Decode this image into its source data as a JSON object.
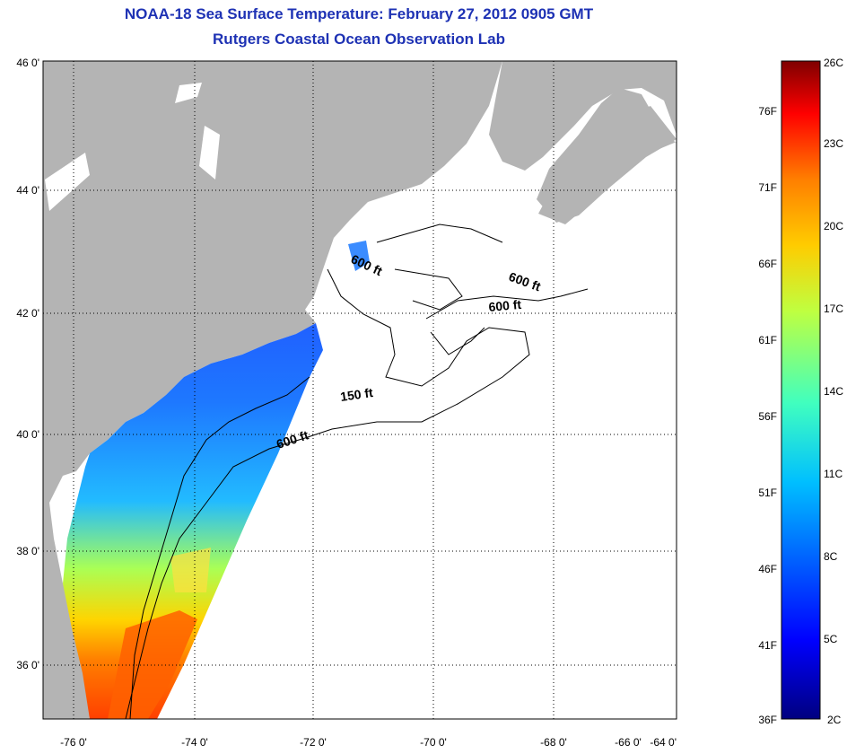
{
  "title": "NOAA-18 Sea Surface Temperature:  February 27, 2012 0905 GMT",
  "subtitle": "Rutgers Coastal Ocean Observation Lab",
  "map": {
    "lon_ticks": [
      "-76 0'",
      "-74 0'",
      "-72 0'",
      "-70 0'",
      "-68 0'",
      "-66 0'",
      "-64 0'"
    ],
    "lat_ticks": [
      "46 0'",
      "44 0'",
      "42 0'",
      "40 0'",
      "38 0'",
      "36 0'"
    ],
    "contour_labels": [
      "600 ft",
      "600 ft",
      "600 ft",
      "150 ft",
      "600 ft"
    ],
    "land_color": "#b4b4b4",
    "grid": true
  },
  "colorbar": {
    "fahrenheit": [
      "76F",
      "71F",
      "66F",
      "61F",
      "56F",
      "51F",
      "46F",
      "41F",
      "36F"
    ],
    "celsius": [
      "26C",
      "23C",
      "20C",
      "17C",
      "14C",
      "11C",
      "8C",
      "5C",
      "2C"
    ],
    "colors": [
      "#00007f",
      "#0000ff",
      "#007fff",
      "#00ffff",
      "#7fff7f",
      "#ffff00",
      "#ff7f00",
      "#ff0000",
      "#7f0000"
    ]
  }
}
